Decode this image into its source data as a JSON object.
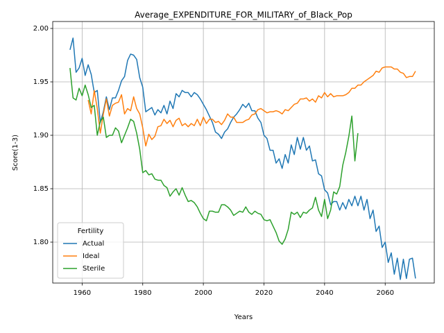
{
  "chart_data": {
    "type": "line",
    "title": "Average_EXPENDITURE_FOR_MILITARY_of_Black_Pop",
    "x_label": "Years",
    "y_label": "Score(1-3)",
    "legend_title": "Fertility",
    "legend_position": "lower left",
    "x": [
      1956,
      1957,
      1958,
      1959,
      1960,
      1961,
      1962,
      1963,
      1964,
      1965,
      1966,
      1967,
      1968,
      1969,
      1970,
      1971,
      1972,
      1973,
      1974,
      1975,
      1976,
      1977,
      1978,
      1979,
      1980,
      1981,
      1982,
      1983,
      1984,
      1985,
      1986,
      1987,
      1988,
      1989,
      1990,
      1991,
      1992,
      1993,
      1994,
      1995,
      1996,
      1997,
      1998,
      1999,
      2000,
      2001,
      2002,
      2003,
      2004,
      2005,
      2006,
      2007,
      2008,
      2009,
      2010,
      2011,
      2012,
      2013,
      2014,
      2015,
      2016,
      2017,
      2018,
      2019,
      2020,
      2021,
      2022,
      2023,
      2024,
      2025,
      2026,
      2027,
      2028,
      2029,
      2030,
      2031,
      2032,
      2033,
      2034,
      2035,
      2036,
      2037,
      2038,
      2039,
      2040,
      2041,
      2042,
      2043,
      2044,
      2045,
      2046,
      2047,
      2048,
      2049,
      2050,
      2051,
      2052,
      2053,
      2054,
      2055,
      2056,
      2057,
      2058,
      2059,
      2060,
      2061,
      2062,
      2063,
      2064,
      2065,
      2066,
      2067,
      2068,
      2069,
      2070
    ],
    "series": [
      {
        "name": "Actual",
        "color": "#1f77b4",
        "values": [
          1.98,
          1.991,
          1.959,
          1.963,
          1.972,
          1.956,
          1.966,
          1.957,
          1.94,
          1.942,
          1.912,
          1.922,
          1.936,
          1.924,
          1.935,
          1.935,
          1.942,
          1.951,
          1.955,
          1.97,
          1.976,
          1.975,
          1.971,
          1.954,
          1.945,
          1.922,
          1.924,
          1.926,
          1.919,
          1.924,
          1.921,
          1.928,
          1.92,
          1.932,
          1.925,
          1.939,
          1.936,
          1.942,
          1.94,
          1.94,
          1.936,
          1.94,
          1.938,
          1.934,
          1.929,
          1.924,
          1.918,
          1.912,
          1.903,
          1.901,
          1.897,
          1.903,
          1.906,
          1.912,
          1.917,
          1.92,
          1.924,
          1.929,
          1.926,
          1.93,
          1.923,
          1.923,
          1.916,
          1.912,
          1.9,
          1.897,
          1.886,
          1.886,
          1.874,
          1.878,
          1.869,
          1.882,
          1.874,
          1.891,
          1.882,
          1.898,
          1.887,
          1.898,
          1.886,
          1.89,
          1.876,
          1.877,
          1.864,
          1.862,
          1.849,
          1.846,
          1.835,
          1.838,
          1.838,
          1.83,
          1.837,
          1.831,
          1.84,
          1.834,
          1.843,
          1.834,
          1.843,
          1.83,
          1.84,
          1.822,
          1.83,
          1.81,
          1.815,
          1.795,
          1.8,
          1.781,
          1.79,
          1.77,
          1.785,
          1.765,
          1.784,
          1.766,
          1.784,
          1.785,
          1.766
        ]
      },
      {
        "name": "Ideal",
        "color": "#ff7f0e",
        "values": [
          null,
          null,
          null,
          null,
          null,
          null,
          1.933,
          1.92,
          1.942,
          1.925,
          1.902,
          1.92,
          1.934,
          1.918,
          1.928,
          1.93,
          1.931,
          1.938,
          1.92,
          1.925,
          1.923,
          1.936,
          1.925,
          1.92,
          1.907,
          1.89,
          1.901,
          1.896,
          1.899,
          1.908,
          1.909,
          1.915,
          1.911,
          1.914,
          1.908,
          1.914,
          1.916,
          1.909,
          1.911,
          1.908,
          1.911,
          1.909,
          1.915,
          1.909,
          1.917,
          1.911,
          1.915,
          1.915,
          1.912,
          1.913,
          1.91,
          1.914,
          1.92,
          1.917,
          1.917,
          1.912,
          1.912,
          1.912,
          1.914,
          1.915,
          1.919,
          1.92,
          1.924,
          1.925,
          1.923,
          1.921,
          1.922,
          1.922,
          1.923,
          1.922,
          1.92,
          1.924,
          1.923,
          1.926,
          1.929,
          1.93,
          1.934,
          1.934,
          1.935,
          1.932,
          1.934,
          1.931,
          1.937,
          1.935,
          1.94,
          1.936,
          1.939,
          1.936,
          1.937,
          1.937,
          1.937,
          1.938,
          1.94,
          1.944,
          1.944,
          1.947,
          1.947,
          1.95,
          1.952,
          1.954,
          1.956,
          1.96,
          1.959,
          1.963,
          1.964,
          1.964,
          1.964,
          1.962,
          1.962,
          1.959,
          1.958,
          1.954,
          1.955,
          1.955,
          1.96
        ]
      },
      {
        "name": "Sterile",
        "color": "#2ca02c",
        "values": [
          1.963,
          1.935,
          1.933,
          1.944,
          1.937,
          1.947,
          1.938,
          1.926,
          1.928,
          1.9,
          1.913,
          1.917,
          1.898,
          1.9,
          1.9,
          1.907,
          1.904,
          1.893,
          1.9,
          1.907,
          1.915,
          1.913,
          1.902,
          1.887,
          1.865,
          1.867,
          1.863,
          1.864,
          1.859,
          1.858,
          1.858,
          1.853,
          1.851,
          1.843,
          1.847,
          1.85,
          1.844,
          1.851,
          1.844,
          1.838,
          1.839,
          1.837,
          1.833,
          1.827,
          1.822,
          1.82,
          1.829,
          1.829,
          1.828,
          1.828,
          1.835,
          1.835,
          1.833,
          1.83,
          1.825,
          1.827,
          1.829,
          1.828,
          1.833,
          1.828,
          1.826,
          1.829,
          1.827,
          1.826,
          1.821,
          1.82,
          1.821,
          1.815,
          1.809,
          1.801,
          1.798,
          1.803,
          1.812,
          1.828,
          1.826,
          1.828,
          1.823,
          1.828,
          1.827,
          1.83,
          1.832,
          1.842,
          1.83,
          1.824,
          1.84,
          1.822,
          1.83,
          1.847,
          1.845,
          1.852,
          1.872,
          1.884,
          1.899,
          1.918,
          1.876,
          1.902,
          null,
          null,
          null,
          null,
          null,
          null,
          null,
          null,
          null,
          null,
          null,
          null,
          null,
          null,
          null,
          null,
          null,
          null,
          null
        ]
      }
    ],
    "xlim": [
      1950.3,
      2076.2
    ],
    "ylim": [
      1.7617,
      2.0065
    ],
    "xticks": [
      1960,
      1980,
      2000,
      2020,
      2040,
      2060
    ],
    "yticks": [
      {
        "value": 1.8,
        "label": "1.80"
      },
      {
        "value": 1.85,
        "label": "1.85"
      },
      {
        "value": 1.9,
        "label": "1.90"
      },
      {
        "value": 1.95,
        "label": "1.95"
      },
      {
        "value": 2.0,
        "label": "2.00"
      }
    ],
    "grid": true
  }
}
